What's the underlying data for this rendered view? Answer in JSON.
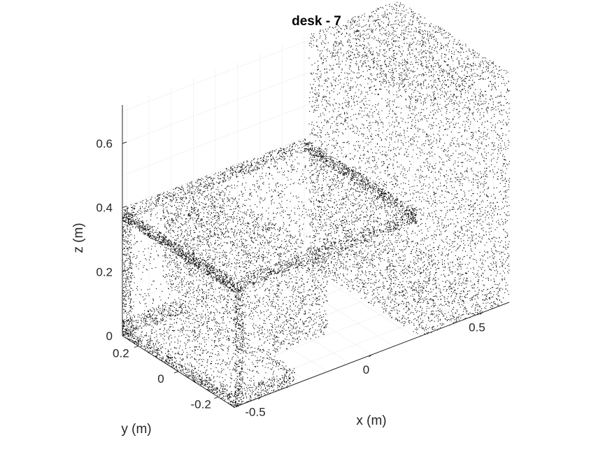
{
  "chart_data": {
    "type": "scatter",
    "subtype": "3d-point-cloud",
    "title": "desk - 7",
    "xlabel": "x (m)",
    "ylabel": "y (m)",
    "zlabel": "z (m)",
    "x_ticks": [
      -0.5,
      0,
      0.5
    ],
    "y_ticks": [
      0.2,
      0,
      -0.2
    ],
    "z_ticks": [
      0,
      0.2,
      0.4,
      0.6
    ],
    "xlim": [
      -0.62,
      0.62
    ],
    "ylim": [
      -0.28,
      0.28
    ],
    "zlim": [
      0,
      0.72
    ],
    "grid": true,
    "marker_color": "#000000",
    "parts": [
      {
        "part": "desktop",
        "x": [
          -0.62,
          0.2
        ],
        "y": [
          -0.28,
          0.28
        ],
        "z": [
          0.36,
          0.4
        ]
      },
      {
        "part": "left-side-panel",
        "x": [
          -0.62,
          -0.58
        ],
        "y": [
          -0.28,
          0.28
        ],
        "z": [
          0,
          0.36
        ]
      },
      {
        "part": "left-lower-shelf",
        "x": [
          -0.62,
          -0.35
        ],
        "y": [
          -0.28,
          0.28
        ],
        "z": [
          0,
          0.05
        ]
      },
      {
        "part": "drawer-unit",
        "x": [
          -0.44,
          -0.2
        ],
        "y": [
          -0.28,
          0.28
        ],
        "z": [
          0.12,
          0.36
        ]
      },
      {
        "part": "right-tower",
        "x": [
          0.22,
          0.62
        ],
        "y": [
          -0.28,
          0.28
        ],
        "z": [
          0,
          0.72
        ]
      }
    ]
  }
}
